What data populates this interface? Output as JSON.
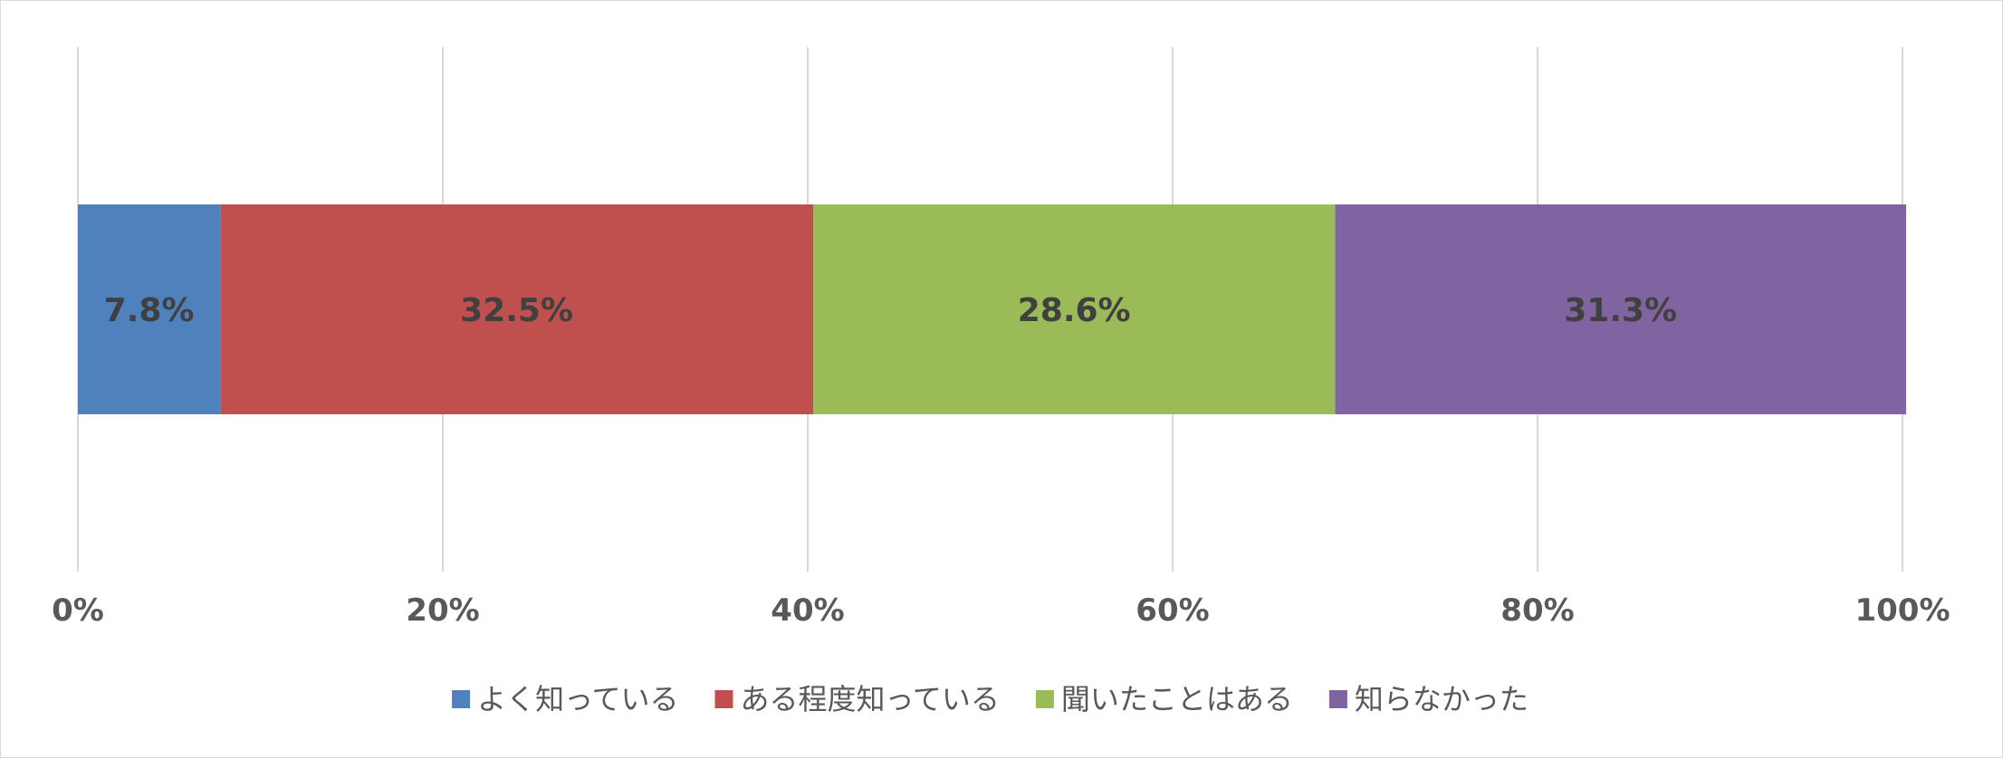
{
  "chart_data": {
    "type": "bar",
    "orientation": "horizontal",
    "stacked": true,
    "categories": [
      ""
    ],
    "series": [
      {
        "name": "よく知っている",
        "values": [
          7.8
        ],
        "label": "7.8%",
        "color": "#4f81bd"
      },
      {
        "name": "ある程度知っている",
        "values": [
          32.5
        ],
        "label": "32.5%",
        "color": "#c0504d"
      },
      {
        "name": "聞いたことはある",
        "values": [
          28.6
        ],
        "label": "28.6%",
        "color": "#9bbb59"
      },
      {
        "name": "知らなかった",
        "values": [
          31.3
        ],
        "label": "31.3%",
        "color": "#8064a2"
      }
    ],
    "xlim": [
      0,
      100
    ],
    "xticks": [
      0,
      20,
      40,
      60,
      80,
      100
    ],
    "xtick_labels": [
      "0%",
      "20%",
      "40%",
      "60%",
      "80%",
      "100%"
    ],
    "grid": true,
    "legend_position": "bottom"
  }
}
